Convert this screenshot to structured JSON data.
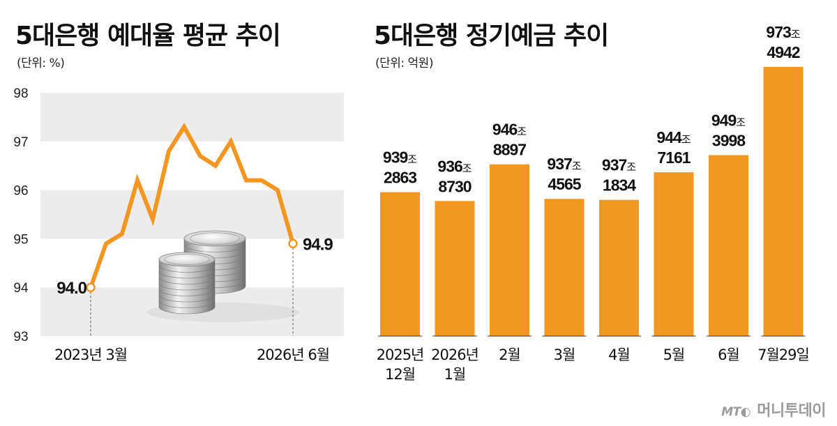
{
  "left_chart": {
    "title": "5대은행 예대율 평균 추이",
    "unit": "(단위: %)",
    "chart_data": {
      "type": "line",
      "title": "5대은행 예대율 평균 추이",
      "ylim": [
        93,
        98
      ],
      "yticks": [
        98,
        97,
        96,
        95,
        94,
        93
      ],
      "x_labels": [
        "2023년 3월",
        "2026년 6월"
      ],
      "series": [
        {
          "values": [
            94.0,
            94.9,
            95.1,
            96.2,
            95.4,
            96.8,
            97.3,
            96.7,
            96.5,
            97.0,
            96.2,
            96.2,
            96.0,
            94.9
          ]
        }
      ],
      "start_label": "94.0",
      "end_label": "94.9",
      "grid": "alternating bands",
      "line_color": "#F39722"
    }
  },
  "right_chart": {
    "title": "5대은행 정기예금 추이",
    "unit": "(단위: 억원)",
    "chart_data": {
      "type": "bar",
      "title": "5대은행 정기예금 추이",
      "categories": [
        "2025년 12월",
        "2026년 1월",
        "2월",
        "3월",
        "4월",
        "5월",
        "6월",
        "7월29일"
      ],
      "category_lines": [
        [
          "2025년",
          "12월"
        ],
        [
          "2026년",
          "1월"
        ],
        [
          "2월"
        ],
        [
          "3월"
        ],
        [
          "4월"
        ],
        [
          "5월"
        ],
        [
          "6월"
        ],
        [
          "7월29일"
        ]
      ],
      "values": [
        9392863,
        9368730,
        9468897,
        9374565,
        9371834,
        9447161,
        9493998,
        9734942
      ],
      "value_labels": [
        {
          "jo": "939",
          "unit": "조",
          "rest": "2863"
        },
        {
          "jo": "936",
          "unit": "조",
          "rest": "8730"
        },
        {
          "jo": "946",
          "unit": "조",
          "rest": "8897"
        },
        {
          "jo": "937",
          "unit": "조",
          "rest": "4565"
        },
        {
          "jo": "937",
          "unit": "조",
          "rest": "1834"
        },
        {
          "jo": "944",
          "unit": "조",
          "rest": "7161"
        },
        {
          "jo": "949",
          "unit": "조",
          "rest": "3998"
        },
        {
          "jo": "973",
          "unit": "조",
          "rest": "4942"
        }
      ],
      "bar_color": "#F39722"
    }
  },
  "watermark": {
    "logo": "MT",
    "text": "머니투데이"
  }
}
